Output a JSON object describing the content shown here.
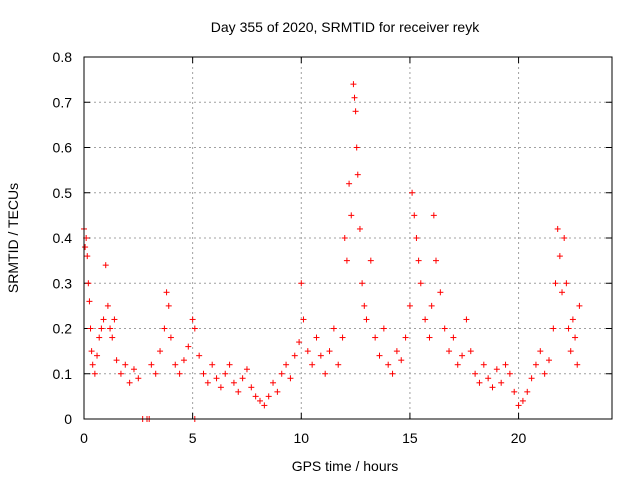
{
  "chart_data": {
    "type": "scatter",
    "title": "Day 355 of 2020, SRMTID for receiver reyk",
    "xlabel": "GPS time / hours",
    "ylabel": "SRMTID / TECUs",
    "xlim": [
      0,
      24.3
    ],
    "ylim": [
      0,
      0.8
    ],
    "x_ticks": [
      0,
      5,
      10,
      15,
      20
    ],
    "x_tick_labels": [
      "0",
      "5",
      "10",
      "15",
      "20"
    ],
    "y_ticks": [
      0,
      0.1,
      0.2,
      0.3,
      0.4,
      0.5,
      0.6,
      0.7,
      0.8
    ],
    "y_tick_labels": [
      "0",
      "0.1",
      "0.2",
      "0.3",
      "0.4",
      "0.5",
      "0.6",
      "0.7",
      "0.8"
    ],
    "grid": true,
    "marker": "+",
    "color": "#ff0000",
    "series": [
      {
        "name": "SRMTID",
        "points": [
          [
            0.0,
            0.42
          ],
          [
            0.05,
            0.38
          ],
          [
            0.1,
            0.4
          ],
          [
            0.15,
            0.36
          ],
          [
            0.2,
            0.3
          ],
          [
            0.25,
            0.26
          ],
          [
            0.3,
            0.2
          ],
          [
            0.35,
            0.15
          ],
          [
            0.4,
            0.12
          ],
          [
            0.5,
            0.1
          ],
          [
            0.6,
            0.14
          ],
          [
            0.7,
            0.18
          ],
          [
            0.8,
            0.2
          ],
          [
            0.9,
            0.22
          ],
          [
            1.0,
            0.34
          ],
          [
            1.1,
            0.25
          ],
          [
            1.2,
            0.2
          ],
          [
            1.3,
            0.18
          ],
          [
            1.4,
            0.22
          ],
          [
            1.5,
            0.13
          ],
          [
            1.7,
            0.1
          ],
          [
            1.9,
            0.12
          ],
          [
            2.1,
            0.08
          ],
          [
            2.3,
            0.11
          ],
          [
            2.5,
            0.09
          ],
          [
            2.7,
            0.0
          ],
          [
            2.9,
            0.0
          ],
          [
            3.0,
            0.0
          ],
          [
            3.1,
            0.12
          ],
          [
            3.3,
            0.1
          ],
          [
            3.5,
            0.15
          ],
          [
            3.7,
            0.2
          ],
          [
            3.8,
            0.28
          ],
          [
            3.9,
            0.25
          ],
          [
            4.0,
            0.18
          ],
          [
            4.2,
            0.12
          ],
          [
            4.4,
            0.1
          ],
          [
            4.6,
            0.13
          ],
          [
            4.8,
            0.16
          ],
          [
            5.0,
            0.22
          ],
          [
            5.1,
            0.2
          ],
          [
            5.1,
            0.0
          ],
          [
            5.3,
            0.14
          ],
          [
            5.5,
            0.1
          ],
          [
            5.7,
            0.08
          ],
          [
            5.9,
            0.12
          ],
          [
            6.1,
            0.09
          ],
          [
            6.3,
            0.07
          ],
          [
            6.5,
            0.1
          ],
          [
            6.7,
            0.12
          ],
          [
            6.9,
            0.08
          ],
          [
            7.1,
            0.06
          ],
          [
            7.3,
            0.09
          ],
          [
            7.5,
            0.11
          ],
          [
            7.7,
            0.07
          ],
          [
            7.9,
            0.05
          ],
          [
            8.1,
            0.04
          ],
          [
            8.3,
            0.03
          ],
          [
            8.5,
            0.05
          ],
          [
            8.7,
            0.08
          ],
          [
            8.9,
            0.06
          ],
          [
            9.1,
            0.1
          ],
          [
            9.3,
            0.12
          ],
          [
            9.5,
            0.09
          ],
          [
            9.7,
            0.14
          ],
          [
            9.9,
            0.17
          ],
          [
            10.0,
            0.3
          ],
          [
            10.1,
            0.22
          ],
          [
            10.3,
            0.15
          ],
          [
            10.5,
            0.12
          ],
          [
            10.7,
            0.18
          ],
          [
            10.9,
            0.14
          ],
          [
            11.1,
            0.1
          ],
          [
            11.3,
            0.15
          ],
          [
            11.5,
            0.2
          ],
          [
            11.7,
            0.12
          ],
          [
            11.9,
            0.18
          ],
          [
            12.0,
            0.4
          ],
          [
            12.1,
            0.35
          ],
          [
            12.2,
            0.52
          ],
          [
            12.3,
            0.45
          ],
          [
            12.4,
            0.74
          ],
          [
            12.45,
            0.71
          ],
          [
            12.5,
            0.68
          ],
          [
            12.55,
            0.6
          ],
          [
            12.6,
            0.54
          ],
          [
            12.7,
            0.42
          ],
          [
            12.8,
            0.3
          ],
          [
            12.9,
            0.25
          ],
          [
            13.0,
            0.22
          ],
          [
            13.2,
            0.35
          ],
          [
            13.4,
            0.18
          ],
          [
            13.6,
            0.14
          ],
          [
            13.8,
            0.2
          ],
          [
            14.0,
            0.12
          ],
          [
            14.2,
            0.1
          ],
          [
            14.4,
            0.15
          ],
          [
            14.6,
            0.13
          ],
          [
            14.8,
            0.18
          ],
          [
            15.0,
            0.25
          ],
          [
            15.1,
            0.5
          ],
          [
            15.2,
            0.45
          ],
          [
            15.3,
            0.4
          ],
          [
            15.4,
            0.35
          ],
          [
            15.5,
            0.3
          ],
          [
            15.7,
            0.22
          ],
          [
            15.9,
            0.18
          ],
          [
            16.0,
            0.25
          ],
          [
            16.1,
            0.45
          ],
          [
            16.2,
            0.35
          ],
          [
            16.4,
            0.28
          ],
          [
            16.6,
            0.2
          ],
          [
            16.8,
            0.15
          ],
          [
            17.0,
            0.18
          ],
          [
            17.2,
            0.12
          ],
          [
            17.4,
            0.14
          ],
          [
            17.6,
            0.22
          ],
          [
            17.8,
            0.15
          ],
          [
            18.0,
            0.1
          ],
          [
            18.2,
            0.08
          ],
          [
            18.4,
            0.12
          ],
          [
            18.6,
            0.09
          ],
          [
            18.8,
            0.07
          ],
          [
            19.0,
            0.11
          ],
          [
            19.2,
            0.08
          ],
          [
            19.4,
            0.12
          ],
          [
            19.6,
            0.1
          ],
          [
            19.8,
            0.06
          ],
          [
            20.0,
            0.03
          ],
          [
            20.2,
            0.04
          ],
          [
            20.4,
            0.06
          ],
          [
            20.6,
            0.09
          ],
          [
            20.8,
            0.12
          ],
          [
            21.0,
            0.15
          ],
          [
            21.2,
            0.1
          ],
          [
            21.4,
            0.13
          ],
          [
            21.6,
            0.2
          ],
          [
            21.7,
            0.3
          ],
          [
            21.8,
            0.42
          ],
          [
            21.9,
            0.36
          ],
          [
            22.0,
            0.28
          ],
          [
            22.1,
            0.4
          ],
          [
            22.2,
            0.3
          ],
          [
            22.3,
            0.2
          ],
          [
            22.4,
            0.15
          ],
          [
            22.5,
            0.22
          ],
          [
            22.6,
            0.18
          ],
          [
            22.7,
            0.12
          ],
          [
            22.8,
            0.25
          ]
        ]
      }
    ]
  }
}
